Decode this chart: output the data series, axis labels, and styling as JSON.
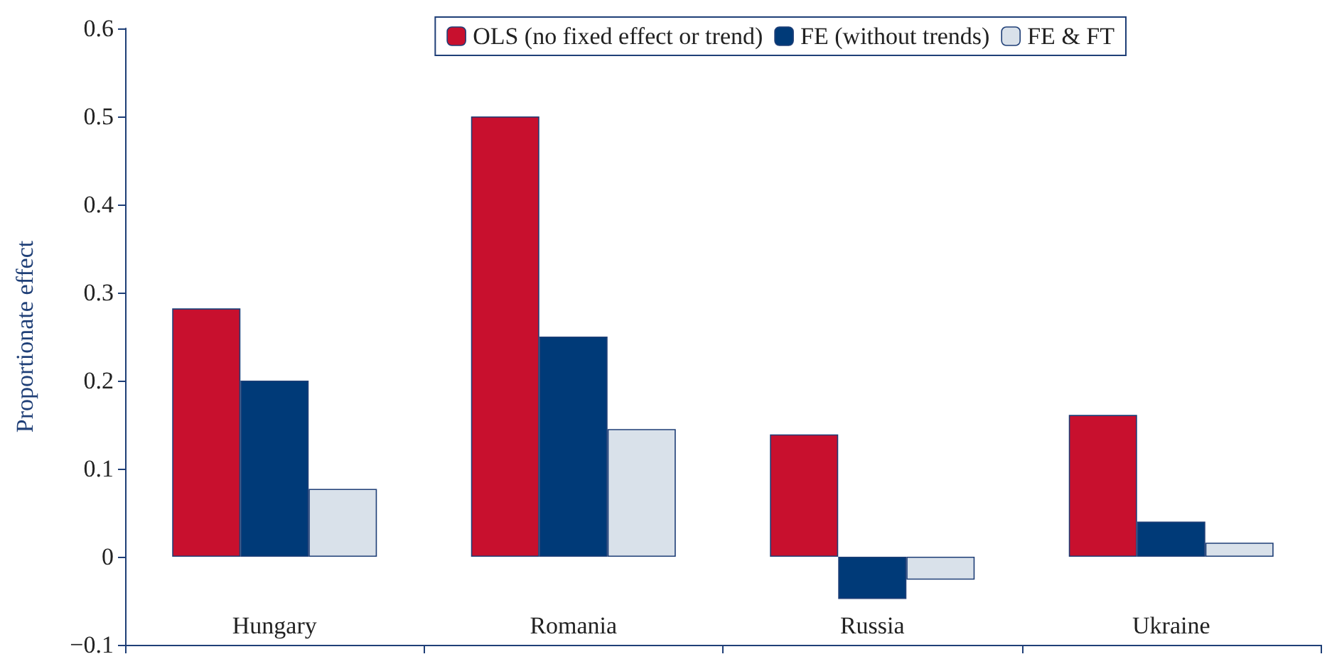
{
  "chart_data": {
    "type": "bar",
    "ylabel": "Proportionate effect",
    "categories": [
      "Hungary",
      "Romania",
      "Russia",
      "Ukraine"
    ],
    "series": [
      {
        "name": "OLS (no fixed effect or trend)",
        "color": "#c8102e",
        "values": [
          0.282,
          0.5,
          0.139,
          0.161
        ]
      },
      {
        "name": "FE (without trends)",
        "color": "#003a78",
        "values": [
          0.2,
          0.25,
          -0.048,
          0.04
        ]
      },
      {
        "name": "FE & FT",
        "color": "#d9e1ea",
        "values": [
          0.077,
          0.145,
          -0.026,
          0.016
        ]
      }
    ],
    "ylim": [
      -0.1,
      0.6
    ],
    "yticks": [
      {
        "value": -0.1,
        "label": "−0.1"
      },
      0,
      0.1,
      0.2,
      0.3,
      0.4,
      0.5,
      0.6
    ],
    "grid": false,
    "legend": "top right"
  }
}
